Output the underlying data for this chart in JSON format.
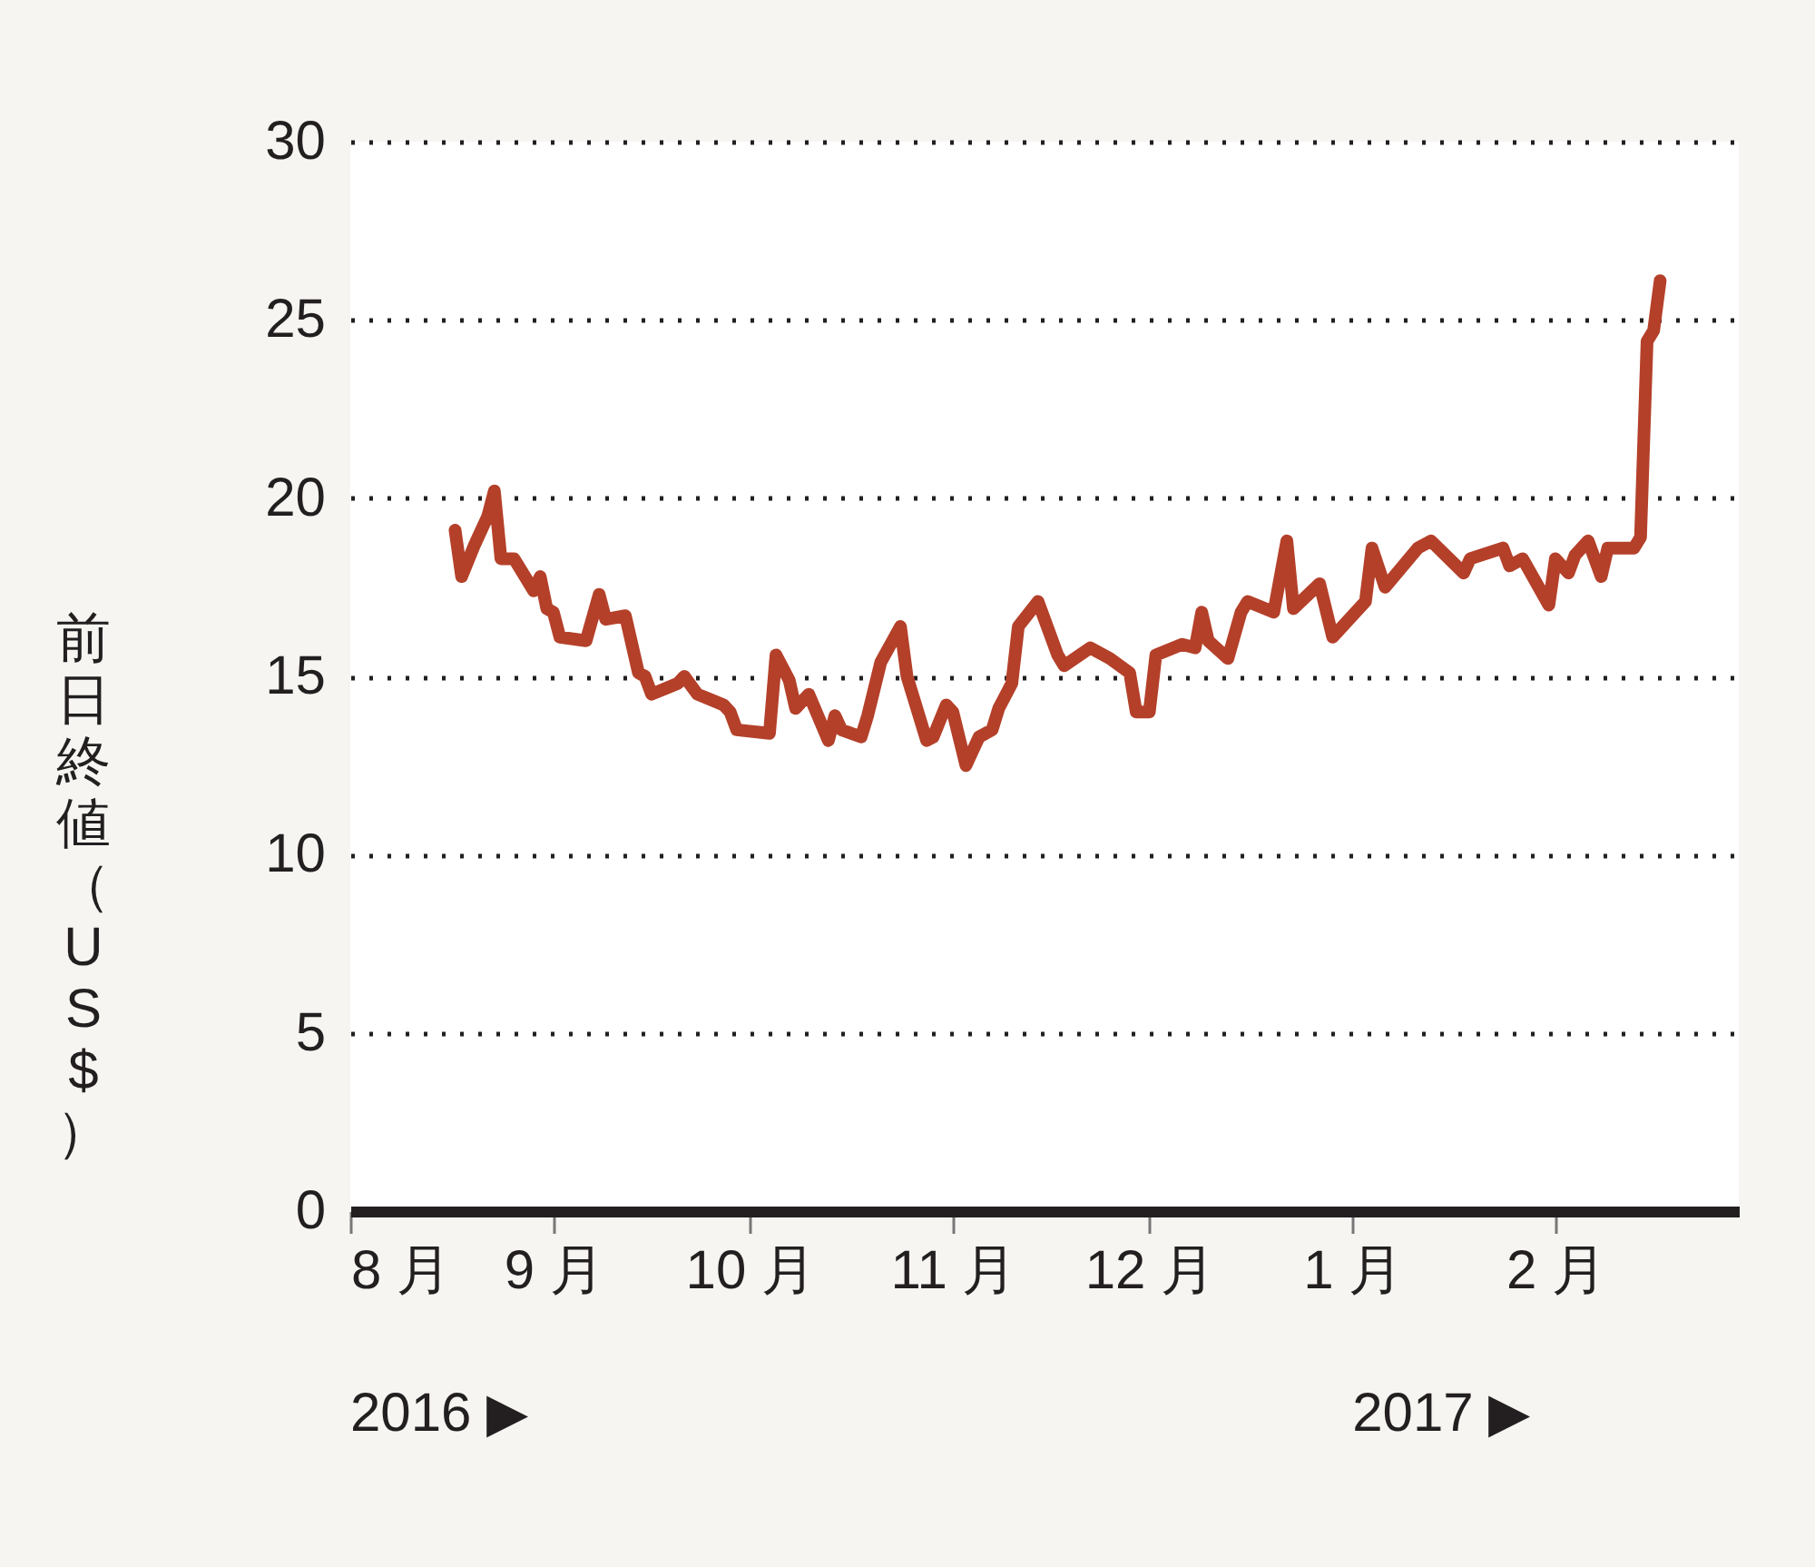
{
  "chart_data": {
    "type": "line",
    "ylabel": "前日終値（US$）",
    "x": [
      "2016-08-17",
      "2016-08-18",
      "2016-08-20",
      "2016-08-22",
      "2016-08-23",
      "2016-08-24",
      "2016-08-26",
      "2016-08-29",
      "2016-08-30",
      "2016-08-31",
      "2016-09-01",
      "2016-09-02",
      "2016-09-06",
      "2016-09-08",
      "2016-09-09",
      "2016-09-12",
      "2016-09-14",
      "2016-09-15",
      "2016-09-16",
      "2016-09-20",
      "2016-09-21",
      "2016-09-23",
      "2016-09-27",
      "2016-09-28",
      "2016-09-29",
      "2016-10-04",
      "2016-10-05",
      "2016-10-07",
      "2016-10-08",
      "2016-10-10",
      "2016-10-13",
      "2016-10-14",
      "2016-10-15",
      "2016-10-18",
      "2016-10-19",
      "2016-10-21",
      "2016-10-24",
      "2016-10-25",
      "2016-10-26",
      "2016-10-28",
      "2016-10-29",
      "2016-10-31",
      "2016-11-01",
      "2016-11-03",
      "2016-11-05",
      "2016-11-07",
      "2016-11-08",
      "2016-11-10",
      "2016-11-11",
      "2016-11-14",
      "2016-11-17",
      "2016-11-18",
      "2016-11-22",
      "2016-11-25",
      "2016-11-28",
      "2016-11-29",
      "2016-12-01",
      "2016-12-02",
      "2016-12-06",
      "2016-12-08",
      "2016-12-09",
      "2016-12-10",
      "2016-12-13",
      "2016-12-15",
      "2016-12-16",
      "2016-12-20",
      "2016-12-22",
      "2016-12-23",
      "2016-12-27",
      "2016-12-29",
      "2017-01-03",
      "2017-01-04",
      "2017-01-06",
      "2017-01-11",
      "2017-01-13",
      "2017-01-18",
      "2017-01-19",
      "2017-01-24",
      "2017-01-25",
      "2017-01-27",
      "2017-01-31",
      "2017-02-01",
      "2017-02-03",
      "2017-02-04",
      "2017-02-06",
      "2017-02-08",
      "2017-02-09",
      "2017-02-13",
      "2017-02-14",
      "2017-02-15",
      "2017-02-16",
      "2017-02-17"
    ],
    "series": [
      {
        "color": "#b4402a",
        "values": [
          19.1,
          17.8,
          18.7,
          19.5,
          20.2,
          18.3,
          18.3,
          17.4,
          17.8,
          16.9,
          16.8,
          16.1,
          16.0,
          17.3,
          16.6,
          16.7,
          15.1,
          15.0,
          14.5,
          14.8,
          15.0,
          14.5,
          14.2,
          14.0,
          13.5,
          13.4,
          15.6,
          14.9,
          14.1,
          14.5,
          13.2,
          13.9,
          13.5,
          13.3,
          13.9,
          15.4,
          16.4,
          15.0,
          14.4,
          13.2,
          13.3,
          14.2,
          14.0,
          12.5,
          13.3,
          13.5,
          14.1,
          14.8,
          16.4,
          17.1,
          15.6,
          15.3,
          15.8,
          15.5,
          15.1,
          14.0,
          14.0,
          15.6,
          15.9,
          15.8,
          16.8,
          16.0,
          15.5,
          16.8,
          17.1,
          16.8,
          18.8,
          16.9,
          17.6,
          16.1,
          17.1,
          18.6,
          17.5,
          18.6,
          18.8,
          17.9,
          18.3,
          18.6,
          18.1,
          18.3,
          17.0,
          18.3,
          17.9,
          18.4,
          18.8,
          17.8,
          18.6,
          18.6,
          18.9,
          24.4,
          24.7,
          26.1
        ]
      }
    ],
    "xlim": [
      "2016-08-01",
      "2017-03-01"
    ],
    "xticks": [
      {
        "value": "2016-08-01",
        "label": "8 月"
      },
      {
        "value": "2016-09-01",
        "label": "9 月"
      },
      {
        "value": "2016-10-01",
        "label": "10 月"
      },
      {
        "value": "2016-11-01",
        "label": "11 月"
      },
      {
        "value": "2016-12-01",
        "label": "12 月"
      },
      {
        "value": "2017-01-01",
        "label": "1 月"
      },
      {
        "value": "2017-02-01",
        "label": "2 月"
      }
    ],
    "ylim": [
      0,
      30
    ],
    "yticks": [
      0,
      5,
      10,
      15,
      20,
      25,
      30
    ],
    "grid": "y",
    "line_style": "solid",
    "marker": "none",
    "annotations": [
      "2016 ▶",
      "2017 ▶"
    ]
  }
}
